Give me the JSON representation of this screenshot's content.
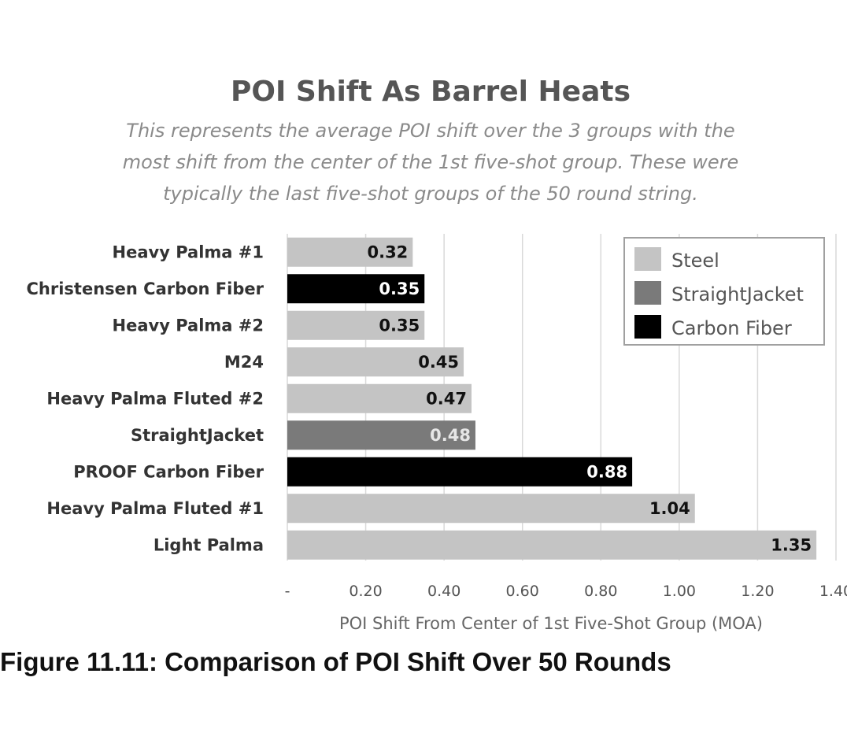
{
  "chart_data": {
    "type": "bar",
    "orientation": "horizontal",
    "title": "POI Shift As Barrel Heats",
    "subtitle_lines": [
      "This represents the average POI shift over the 3 groups with the",
      "most shift from the center of the 1st five-shot group. These were",
      "typically the last five-shot groups of the 50 round string."
    ],
    "categories": [
      "Heavy Palma #1",
      "Christensen Carbon Fiber",
      "Heavy Palma #2",
      "M24",
      "Heavy Palma Fluted #2",
      "StraightJacket",
      "PROOF Carbon Fiber",
      "Heavy Palma Fluted #1",
      "Light Palma"
    ],
    "values": [
      0.32,
      0.35,
      0.35,
      0.45,
      0.47,
      0.48,
      0.88,
      1.04,
      1.35
    ],
    "value_labels": [
      "0.32",
      "0.35",
      "0.35",
      "0.45",
      "0.47",
      "0.48",
      "0.88",
      "1.04",
      "1.35"
    ],
    "groups": [
      "Steel",
      "Carbon Fiber",
      "Steel",
      "Steel",
      "Steel",
      "StraightJacket",
      "Carbon Fiber",
      "Steel",
      "Steel"
    ],
    "series": [
      {
        "name": "Steel",
        "color": "#c4c4c4",
        "label_color": "#111111"
      },
      {
        "name": "StraightJacket",
        "color": "#7a7a7a",
        "label_color": "#e6e6e6"
      },
      {
        "name": "Carbon Fiber",
        "color": "#000000",
        "label_color": "#ffffff"
      }
    ],
    "xlabel": "POI Shift From Center of 1st Five-Shot Group (MOA)",
    "xlim": [
      0,
      1.4
    ],
    "x_ticks": [
      0,
      0.2,
      0.4,
      0.6,
      0.8,
      1.0,
      1.2,
      1.4
    ],
    "x_tick_labels": [
      "-",
      "0.20",
      "0.40",
      "0.60",
      "0.80",
      "1.00",
      "1.20",
      "1.40"
    ],
    "grid": "vertical",
    "legend_position": "top-right"
  },
  "caption": "Figure 11.11: Comparison of POI Shift Over 50 Rounds"
}
